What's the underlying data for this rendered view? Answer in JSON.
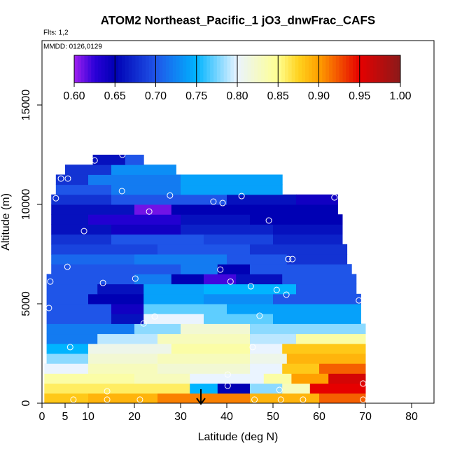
{
  "chart_data": {
    "type": "curtain",
    "title": "ATOM2 Northeast_Pacific_1 jO3_dnwFrac_CAFS",
    "flights": "Flts: 1,2",
    "dates": "MMDD: 0126,0129",
    "x_label": "Latitude (deg N)",
    "y_label": "Altitude (m)",
    "xlim": [
      0,
      84.85
    ],
    "xticks": [
      0,
      5,
      10,
      20,
      30,
      40,
      50,
      60,
      70,
      80
    ],
    "ylim": [
      0,
      18240
    ],
    "yticks": [
      0,
      5000,
      10000,
      15000
    ],
    "clim": [
      0.6,
      1.0
    ],
    "cticks": [
      {
        "value": 0.6,
        "label": "0.60"
      },
      {
        "value": 0.65,
        "label": "0.65"
      },
      {
        "value": 0.7,
        "label": "0.70"
      },
      {
        "value": 0.75,
        "label": "0.75"
      },
      {
        "value": 0.8,
        "label": "0.80"
      },
      {
        "value": 0.85,
        "label": "0.85"
      },
      {
        "value": 0.9,
        "label": "0.90"
      },
      {
        "value": 0.95,
        "label": "0.95"
      },
      {
        "value": 1.0,
        "label": "1.00"
      }
    ],
    "colormap": [
      [
        0.6,
        "#a020f0"
      ],
      [
        0.625,
        "#2b00d8"
      ],
      [
        0.65,
        "#0000b4"
      ],
      [
        0.7,
        "#1f55e8"
      ],
      [
        0.75,
        "#00b4ff"
      ],
      [
        0.8,
        "#eaf4ff"
      ],
      [
        0.85,
        "#ffff90"
      ],
      [
        0.875,
        "#ffd21e"
      ],
      [
        0.9,
        "#ffa000"
      ],
      [
        0.95,
        "#e60000"
      ],
      [
        1.0,
        "#8b1a1a"
      ]
    ],
    "rows": [
      {
        "alt": [
          0,
          500
        ],
        "edges": [
          0.5,
          10,
          25,
          45,
          60,
          70
        ],
        "values": [
          0.88,
          0.89,
          0.91,
          0.89,
          0.92
        ]
      },
      {
        "alt": [
          500,
          1000
        ],
        "edges": [
          0.5,
          32,
          38,
          45,
          52,
          58,
          70
        ],
        "values": [
          0.86,
          0.75,
          0.65,
          0.78,
          0.83,
          0.95
        ]
      },
      {
        "alt": [
          1000,
          1500
        ],
        "edges": [
          0.5,
          20,
          32,
          48,
          54,
          62,
          70
        ],
        "values": [
          0.84,
          0.83,
          0.8,
          0.84,
          0.9,
          0.96
        ]
      },
      {
        "alt": [
          1500,
          2000
        ],
        "edges": [
          0.5,
          10,
          25,
          45,
          52,
          60,
          70
        ],
        "values": [
          0.8,
          0.83,
          0.82,
          0.8,
          0.88,
          0.92
        ]
      },
      {
        "alt": [
          2000,
          2500
        ],
        "edges": [
          1,
          10,
          25,
          45,
          53,
          70
        ],
        "values": [
          0.78,
          0.82,
          0.83,
          0.81,
          0.89
        ]
      },
      {
        "alt": [
          2500,
          3000
        ],
        "edges": [
          1,
          10,
          28,
          45,
          52,
          70
        ],
        "values": [
          0.75,
          0.81,
          0.84,
          0.8,
          0.88
        ]
      },
      {
        "alt": [
          3000,
          3500
        ],
        "edges": [
          1,
          12,
          25,
          45,
          55,
          70
        ],
        "values": [
          0.72,
          0.79,
          0.83,
          0.79,
          0.84
        ]
      },
      {
        "alt": [
          3500,
          4000
        ],
        "edges": [
          1,
          20,
          30,
          45,
          70
        ],
        "values": [
          0.72,
          0.78,
          0.82,
          0.78
        ]
      },
      {
        "alt": [
          4000,
          4500
        ],
        "edges": [
          1,
          15,
          22,
          35,
          50,
          69
        ],
        "values": [
          0.7,
          0.66,
          0.8,
          0.77,
          0.74
        ]
      },
      {
        "alt": [
          4500,
          5000
        ],
        "edges": [
          1,
          15,
          22,
          40,
          69
        ],
        "values": [
          0.7,
          0.64,
          0.77,
          0.74
        ]
      },
      {
        "alt": [
          5000,
          5500
        ],
        "edges": [
          1,
          10,
          22,
          35,
          50,
          69
        ],
        "values": [
          0.7,
          0.65,
          0.74,
          0.73,
          0.7
        ]
      },
      {
        "alt": [
          5500,
          6000
        ],
        "edges": [
          1,
          12,
          22,
          35,
          55,
          68
        ],
        "values": [
          0.7,
          0.66,
          0.74,
          0.75,
          0.7
        ]
      },
      {
        "alt": [
          6000,
          6500
        ],
        "edges": [
          1,
          20,
          28,
          35,
          42,
          52,
          68
        ],
        "values": [
          0.7,
          0.72,
          0.65,
          0.62,
          0.66,
          0.7
        ]
      },
      {
        "alt": [
          6500,
          7000
        ],
        "edges": [
          2,
          30,
          38,
          45,
          67
        ],
        "values": [
          0.7,
          0.72,
          0.65,
          0.7
        ]
      },
      {
        "alt": [
          7000,
          7500
        ],
        "edges": [
          2,
          20,
          40,
          53,
          66
        ],
        "values": [
          0.71,
          0.72,
          0.7,
          0.68
        ]
      },
      {
        "alt": [
          7500,
          8000
        ],
        "edges": [
          2,
          25,
          45,
          66
        ],
        "values": [
          0.69,
          0.7,
          0.68
        ]
      },
      {
        "alt": [
          8000,
          8500
        ],
        "edges": [
          2,
          15,
          35,
          50,
          65
        ],
        "values": [
          0.68,
          0.7,
          0.69,
          0.67
        ]
      },
      {
        "alt": [
          8500,
          9000
        ],
        "edges": [
          2,
          15,
          30,
          50,
          65
        ],
        "values": [
          0.66,
          0.64,
          0.67,
          0.66
        ]
      },
      {
        "alt": [
          9000,
          9500
        ],
        "edges": [
          2,
          10,
          30,
          45,
          65
        ],
        "values": [
          0.66,
          0.63,
          0.66,
          0.65
        ]
      },
      {
        "alt": [
          9500,
          10000
        ],
        "edges": [
          2,
          20,
          28,
          45,
          64
        ],
        "values": [
          0.66,
          0.61,
          0.65,
          0.65
        ]
      },
      {
        "alt": [
          10000,
          10500
        ],
        "edges": [
          2,
          15,
          40,
          55,
          64
        ],
        "values": [
          0.68,
          0.7,
          0.66,
          0.64
        ]
      },
      {
        "alt": [
          10500,
          11000
        ],
        "edges": [
          3,
          15,
          30,
          52
        ],
        "values": [
          0.7,
          0.72,
          0.74
        ]
      },
      {
        "alt": [
          11000,
          11500
        ],
        "edges": [
          3,
          10,
          30,
          52
        ],
        "values": [
          0.68,
          0.72,
          0.74
        ]
      },
      {
        "alt": [
          11500,
          12000
        ],
        "edges": [
          5,
          15,
          29
        ],
        "values": [
          0.68,
          0.73
        ]
      },
      {
        "alt": [
          12000,
          12500
        ],
        "edges": [
          11,
          18,
          22
        ],
        "values": [
          0.66,
          0.7
        ]
      }
    ],
    "points": {
      "lat": [
        6.8,
        14.1,
        21.2,
        46,
        51.7,
        56.5,
        69.5,
        14.1,
        40.2,
        51.4,
        69.5,
        40.2,
        6.1,
        45.6,
        22,
        24.4,
        47.1,
        1.5,
        68.6,
        52.9,
        50.8,
        45.2,
        13.2,
        40.8,
        1.8,
        20.2,
        38.6,
        5.5,
        54.2,
        53.3,
        9.1,
        49.1,
        23.2,
        39.1,
        37.1,
        3,
        17.3,
        27.7,
        43.2,
        63.3,
        4.1,
        5.6,
        11.4,
        17.4
      ],
      "alt": [
        180,
        180,
        180,
        180,
        180,
        180,
        180,
        600,
        880,
        670,
        990,
        1440,
        2820,
        2820,
        4010,
        4360,
        4400,
        4790,
        5170,
        5460,
        5700,
        5880,
        6050,
        6120,
        6120,
        6270,
        6720,
        6860,
        7250,
        7250,
        8660,
        9190,
        9640,
        10070,
        10140,
        10310,
        10670,
        10450,
        10420,
        10350,
        11300,
        11300,
        12210,
        12500
      ]
    }
  }
}
